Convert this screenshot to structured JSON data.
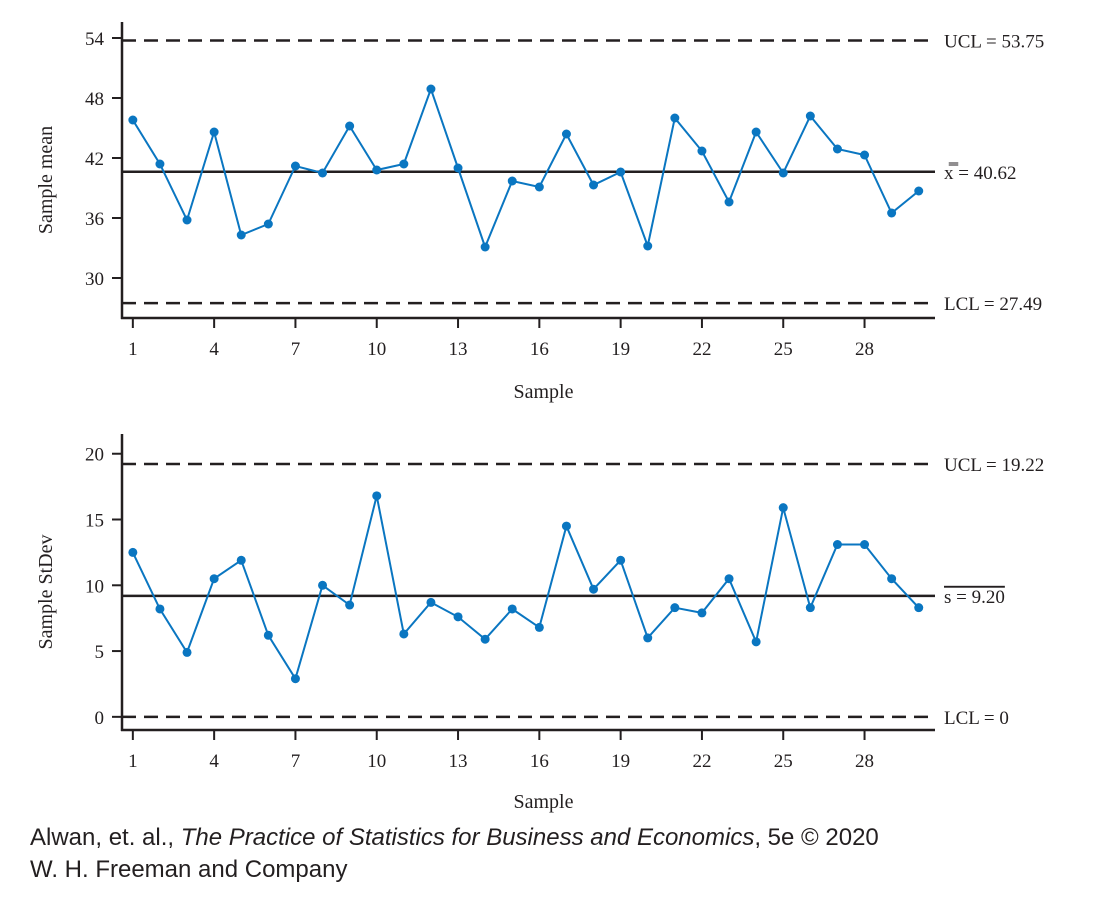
{
  "chart_data": [
    {
      "type": "line",
      "xlabel": "Sample",
      "ylabel": "Sample mean",
      "xlim": [
        0.6,
        30.6
      ],
      "ylim": [
        26.0,
        55.6
      ],
      "x_ticks": [
        1,
        4,
        7,
        10,
        13,
        16,
        19,
        22,
        25,
        28
      ],
      "y_ticks": [
        30,
        36,
        42,
        48,
        54
      ],
      "grid": false,
      "x": [
        1,
        2,
        3,
        4,
        5,
        6,
        7,
        8,
        9,
        10,
        11,
        12,
        13,
        14,
        15,
        16,
        17,
        18,
        19,
        20,
        21,
        22,
        23,
        24,
        25,
        26,
        27,
        28,
        29,
        30
      ],
      "values": [
        45.8,
        41.4,
        35.8,
        44.6,
        34.3,
        35.4,
        41.2,
        40.5,
        45.2,
        40.8,
        41.4,
        48.9,
        41.0,
        33.1,
        39.7,
        39.1,
        44.4,
        39.3,
        40.6,
        33.2,
        46.0,
        42.7,
        37.6,
        44.6,
        40.5,
        46.2,
        42.9,
        42.3,
        36.5,
        38.7
      ],
      "color": "#0a76c1",
      "reference_lines": [
        {
          "value": 53.75,
          "label": "UCL = 53.75",
          "style": "dashed"
        },
        {
          "value": 40.62,
          "label": "x̿ = 40.62",
          "style": "solid"
        },
        {
          "value": 27.49,
          "label": "LCL = 27.49",
          "style": "dashed"
        }
      ]
    },
    {
      "type": "line",
      "xlabel": "Sample",
      "ylabel": "Sample StDev",
      "xlim": [
        0.6,
        30.6
      ],
      "ylim": [
        -1.0,
        21.5
      ],
      "x_ticks": [
        1,
        4,
        7,
        10,
        13,
        16,
        19,
        22,
        25,
        28
      ],
      "y_ticks": [
        0,
        5,
        10,
        15,
        20
      ],
      "grid": false,
      "x": [
        1,
        2,
        3,
        4,
        5,
        6,
        7,
        8,
        9,
        10,
        11,
        12,
        13,
        14,
        15,
        16,
        17,
        18,
        19,
        20,
        21,
        22,
        23,
        24,
        25,
        26,
        27,
        28,
        29,
        30
      ],
      "values": [
        12.5,
        8.2,
        4.9,
        10.5,
        11.9,
        6.2,
        2.9,
        10.0,
        8.5,
        16.8,
        6.3,
        8.7,
        7.6,
        5.9,
        8.2,
        6.8,
        14.5,
        9.7,
        11.9,
        6.0,
        8.3,
        7.9,
        10.5,
        5.7,
        15.9,
        8.3,
        13.1,
        13.1,
        10.5,
        8.3
      ],
      "color": "#0a76c1",
      "reference_lines": [
        {
          "value": 19.22,
          "label": "UCL = 19.22",
          "style": "dashed"
        },
        {
          "value": 9.2,
          "label": "s = 9.20",
          "style": "solid",
          "overline": true
        },
        {
          "value": 0,
          "label": "LCL = 0",
          "style": "dashed"
        }
      ]
    }
  ],
  "credit": {
    "authors": "Alwan, et. al., ",
    "book_title": "The Practice of Statistics for Business and Economics",
    "edition": ", 5e © 2020",
    "publisher": "W. H. Freeman and Company"
  }
}
